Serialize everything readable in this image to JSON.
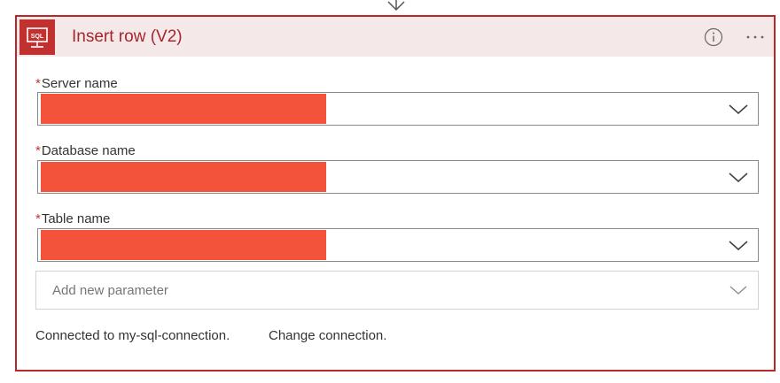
{
  "action_card": {
    "title": "Insert row (V2)",
    "icon": "sql-server-icon",
    "icon_text": "SQL",
    "accent_color": "#b9272a",
    "header_bg": "#f5e8e8"
  },
  "fields": [
    {
      "label": "Server name",
      "required_marker": "*",
      "value": "[redacted]"
    },
    {
      "label": "Database name",
      "required_marker": "*",
      "value": "[redacted]"
    },
    {
      "label": "Table name",
      "required_marker": "*",
      "value": "[redacted]"
    }
  ],
  "add_parameter": {
    "placeholder": "Add new parameter"
  },
  "connection": {
    "status_text": "Connected to my-sql-connection.",
    "change_link_text": "Change connection."
  },
  "redaction_color": "#f4533b"
}
